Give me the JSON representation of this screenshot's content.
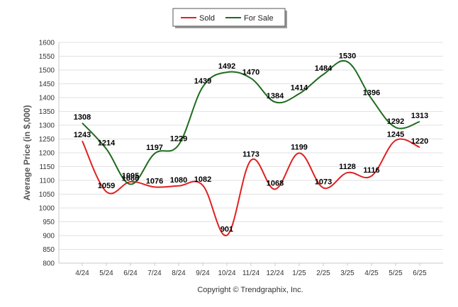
{
  "chart_data": {
    "type": "line",
    "title": "",
    "xlabel": "",
    "ylabel": "Average Price (in $,000)",
    "footer": "Copyright © Trendgraphix, Inc.",
    "categories": [
      "4/24",
      "5/24",
      "6/24",
      "7/24",
      "8/24",
      "9/24",
      "10/24",
      "11/24",
      "12/24",
      "1/25",
      "2/25",
      "3/25",
      "4/25",
      "5/25",
      "6/25"
    ],
    "ylim": [
      800,
      1600
    ],
    "yticks": [
      800,
      850,
      900,
      950,
      1000,
      1050,
      1100,
      1150,
      1200,
      1250,
      1300,
      1350,
      1400,
      1450,
      1500,
      1550,
      1600
    ],
    "grid": true,
    "legend_position": "top-center",
    "series": [
      {
        "name": "Sold",
        "color": "#e02020",
        "values": [
          1243,
          1059,
          1095,
          1076,
          1080,
          1082,
          901,
          1173,
          1068,
          1199,
          1073,
          1128,
          1116,
          1245,
          1220
        ]
      },
      {
        "name": "For Sale",
        "color": "#1e6b1e",
        "values": [
          1308,
          1214,
          1086,
          1197,
          1229,
          1439,
          1492,
          1470,
          1384,
          1414,
          1484,
          1530,
          1396,
          1292,
          1313
        ]
      }
    ]
  }
}
